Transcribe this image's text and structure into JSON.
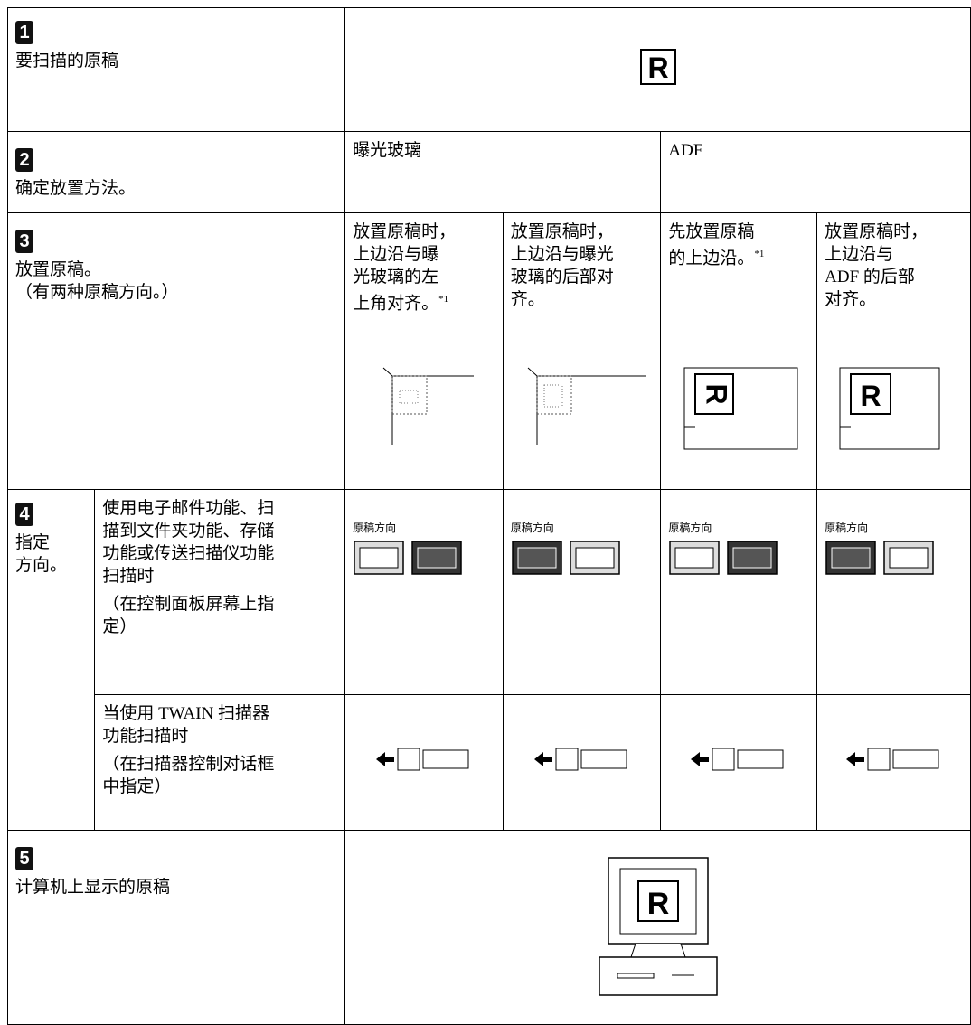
{
  "rows": [
    {
      "number": "1",
      "label": "要扫描的原稿",
      "letter": "R"
    },
    {
      "number": "2",
      "label": "确定放置方法。",
      "exposure_glass": "曝光玻璃",
      "adf": "ADF"
    },
    {
      "number": "3",
      "label": "放置原稿。",
      "note": "（有两种原稿方向。）",
      "letter": "R",
      "cells": [
        {
          "lines": [
            "放置原稿时，",
            "上边沿与曝",
            "光玻璃的左",
            "上角对齐。"
          ],
          "footnote": "*1"
        },
        {
          "lines": [
            "放置原稿时，",
            "上边沿与曝光",
            "玻璃的后部对",
            "齐。"
          ]
        },
        {
          "lines": [
            "先放置原稿",
            "的上边沿。"
          ],
          "footnote": "*1"
        },
        {
          "lines": [
            "放置原稿时，",
            "上边沿与",
            "ADF 的后部",
            "对齐。"
          ]
        }
      ]
    },
    {
      "number": "4",
      "label_lines": [
        "指定",
        "方向。"
      ],
      "control_panel": {
        "lines": [
          "使用电子邮件功能、扫",
          "描到文件夹功能、存储",
          "功能或传送扫描仪功能",
          "扫描时"
        ],
        "note_lines": [
          "（在控制面板屏幕上指",
          "定）"
        ],
        "captions": [
          "原稿方向",
          "原稿方向",
          "原稿方向",
          "原稿方向"
        ]
      },
      "twain": {
        "lines": [
          "当使用 TWAIN 扫描器",
          "功能扫描时"
        ],
        "note_lines": [
          "（在扫描器控制对话框",
          "中指定）"
        ]
      }
    },
    {
      "number": "5",
      "label": "计算机上显示的原稿",
      "letter": "R"
    }
  ]
}
